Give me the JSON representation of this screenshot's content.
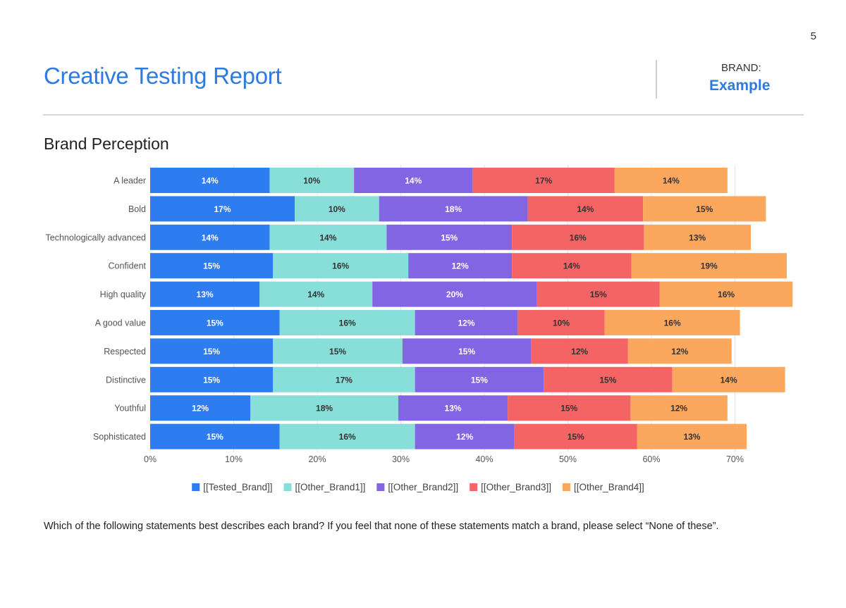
{
  "page": {
    "number": "5",
    "title": "Creative Testing Report",
    "brand_label": "BRAND:",
    "brand_value": "Example",
    "section_title": "Brand Perception",
    "footnote": "Which of the following statements best describes each brand? If you feel that none of these statements match a brand, please select “None of these”."
  },
  "chart_data": {
    "type": "bar",
    "orientation": "horizontal",
    "stacked": true,
    "categories": [
      "A leader",
      "Bold",
      "Technologically advanced",
      "Confident",
      "High quality",
      "A good value",
      "Respected",
      "Distinctive",
      "Youthful",
      "Sophisticated"
    ],
    "series": [
      {
        "name": "[[Tested_Brand]]",
        "color": "#2d7cf0",
        "label_color": "#ffffff",
        "values": [
          14.3,
          17.3,
          14.3,
          14.7,
          13.1,
          15.5,
          14.7,
          14.7,
          12.0,
          15.5
        ],
        "labels": [
          "14%",
          "17%",
          "14%",
          "15%",
          "13%",
          "15%",
          "15%",
          "15%",
          "12%",
          "15%"
        ]
      },
      {
        "name": "[[Other_Brand1]]",
        "color": "#88ded9",
        "label_color": "#333333",
        "values": [
          10.1,
          10.1,
          14.0,
          16.2,
          13.5,
          16.2,
          15.5,
          17.0,
          17.7,
          16.2
        ],
        "labels": [
          "10%",
          "10%",
          "14%",
          "16%",
          "14%",
          "16%",
          "15%",
          "17%",
          "18%",
          "16%"
        ]
      },
      {
        "name": "[[Other_Brand2]]",
        "color": "#8165e3",
        "label_color": "#ffffff",
        "values": [
          14.2,
          17.8,
          15.0,
          12.4,
          19.7,
          12.3,
          15.4,
          15.4,
          13.1,
          11.9
        ],
        "labels": [
          "14%",
          "18%",
          "15%",
          "12%",
          "20%",
          "12%",
          "15%",
          "15%",
          "13%",
          "12%"
        ]
      },
      {
        "name": "[[Other_Brand3]]",
        "color": "#f56464",
        "label_color": "#333333",
        "values": [
          17.0,
          13.8,
          15.8,
          14.3,
          14.7,
          10.4,
          11.6,
          15.4,
          14.7,
          14.7
        ],
        "labels": [
          "17%",
          "14%",
          "16%",
          "14%",
          "15%",
          "10%",
          "12%",
          "15%",
          "15%",
          "15%"
        ]
      },
      {
        "name": "[[Other_Brand4]]",
        "color": "#fca75e",
        "label_color": "#333333",
        "values": [
          13.5,
          14.7,
          12.8,
          18.6,
          15.9,
          16.2,
          12.4,
          13.5,
          11.6,
          13.1
        ],
        "labels": [
          "14%",
          "15%",
          "13%",
          "19%",
          "16%",
          "16%",
          "12%",
          "14%",
          "12%",
          "13%"
        ]
      }
    ],
    "x_ticks": [
      "0%",
      "10%",
      "20%",
      "30%",
      "40%",
      "50%",
      "60%",
      "70%"
    ],
    "xlim": [
      0,
      77
    ],
    "grid": true,
    "legend_position": "bottom"
  }
}
